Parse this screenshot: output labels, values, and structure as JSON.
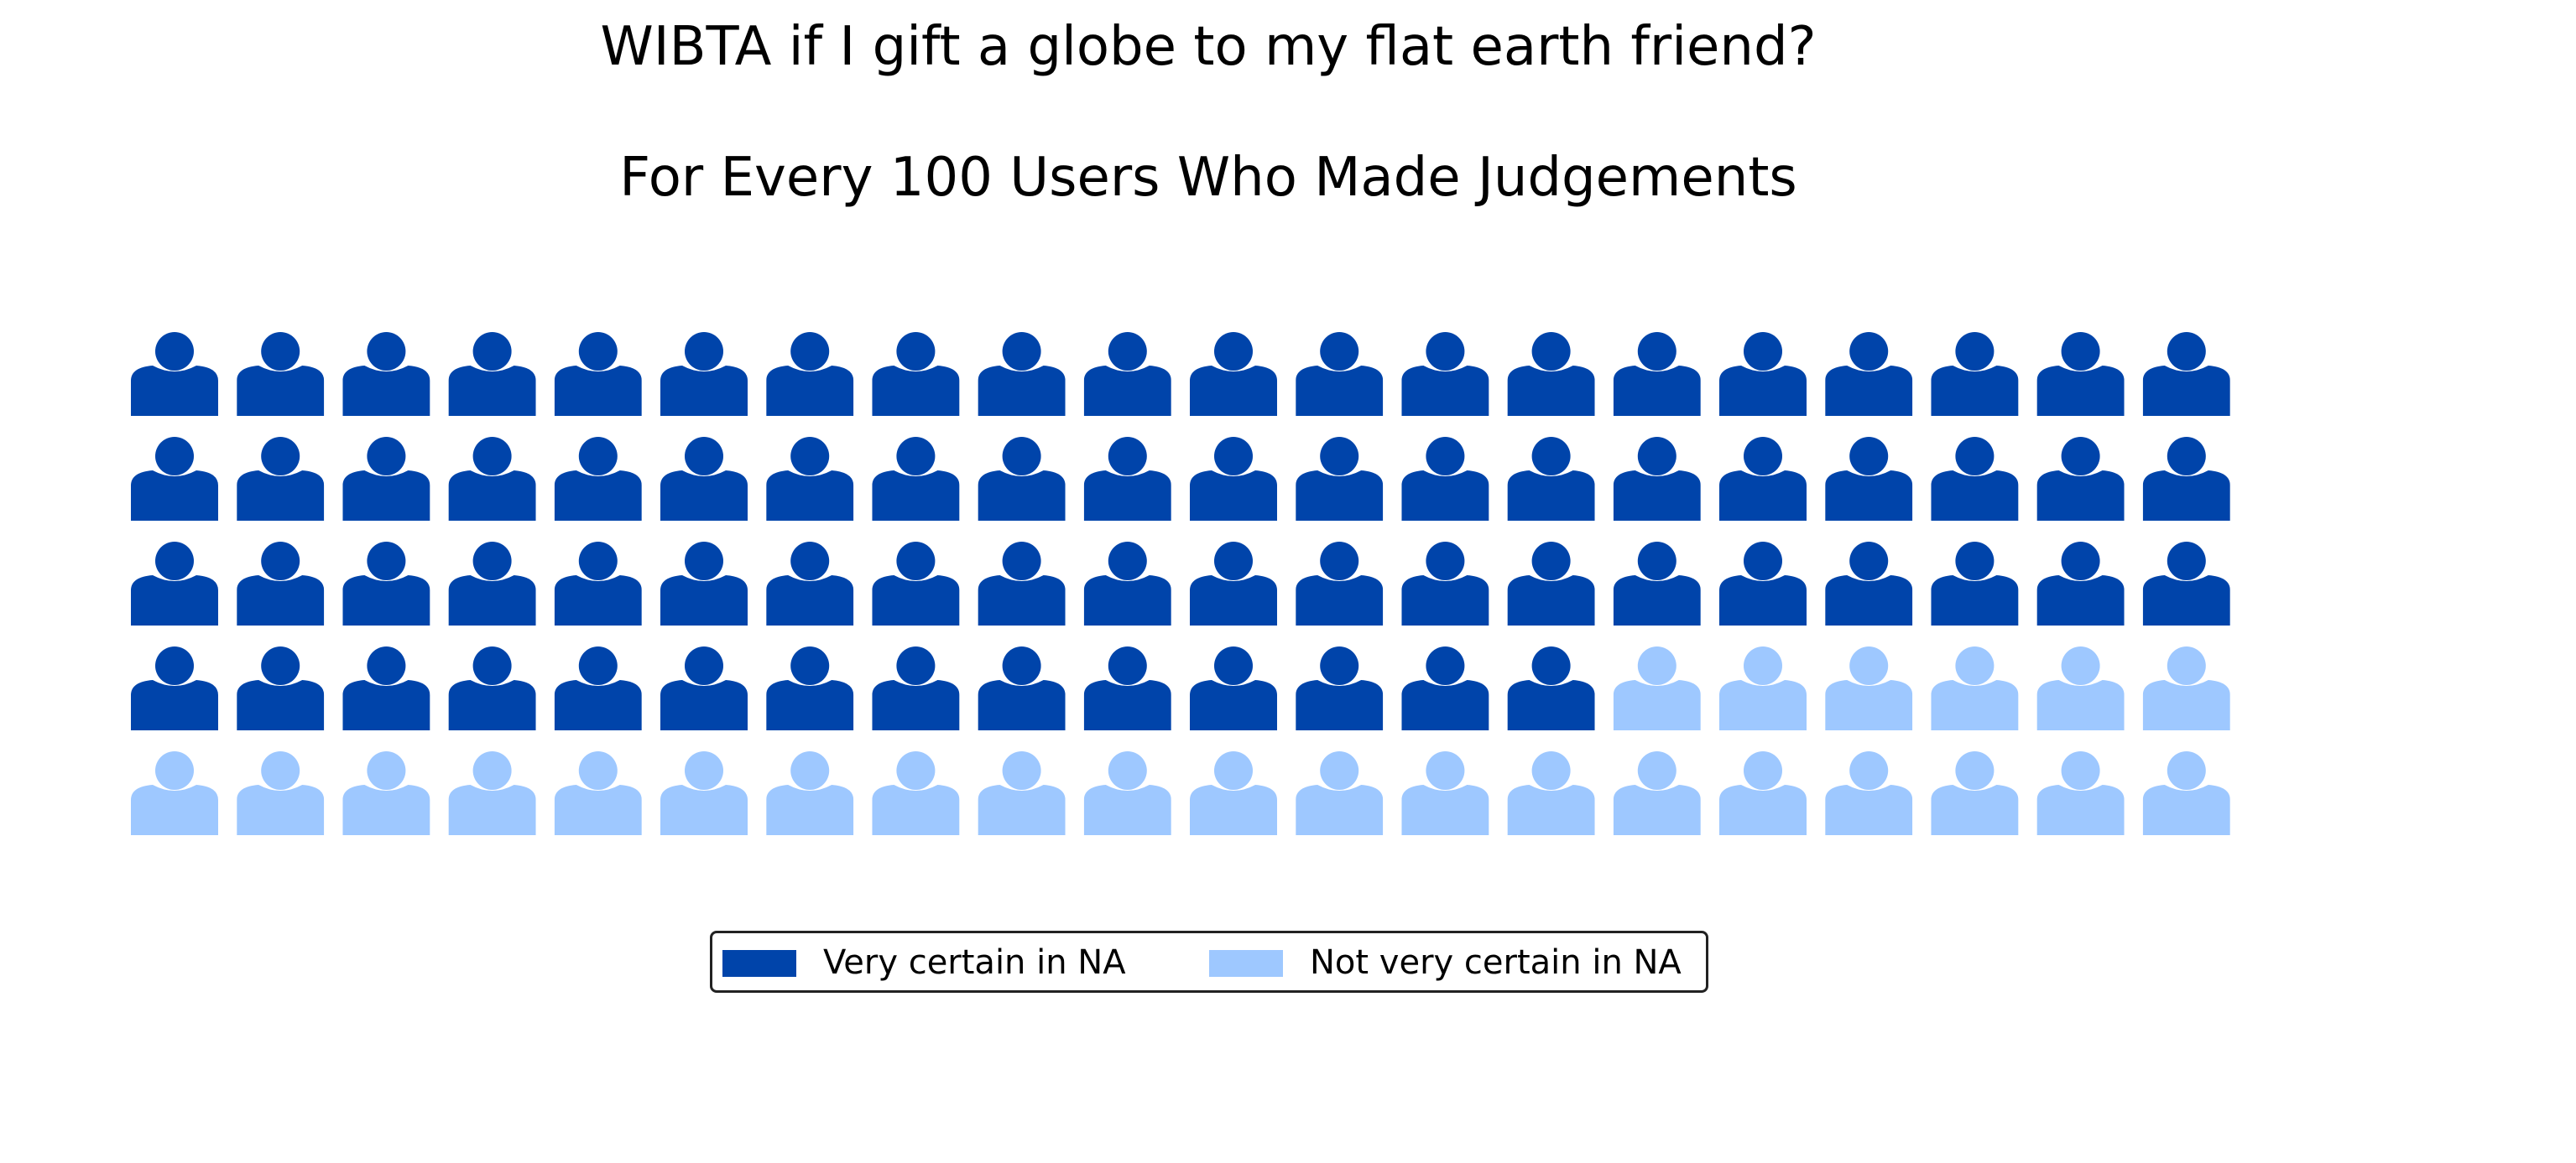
{
  "chart_data": {
    "type": "waffle",
    "title": "WIBTA if I gift a globe to my flat earth friend?",
    "subtitle": "For Every 100 Users Who Made Judgements",
    "rows": 5,
    "columns": 20,
    "icon": "person-icon",
    "series": [
      {
        "name": "Very certain in NA",
        "value": 74,
        "color": "#0044aa"
      },
      {
        "name": "Not very certain in NA",
        "value": 26,
        "color": "#9ec8ff"
      }
    ],
    "legend_position": "bottom-center"
  }
}
